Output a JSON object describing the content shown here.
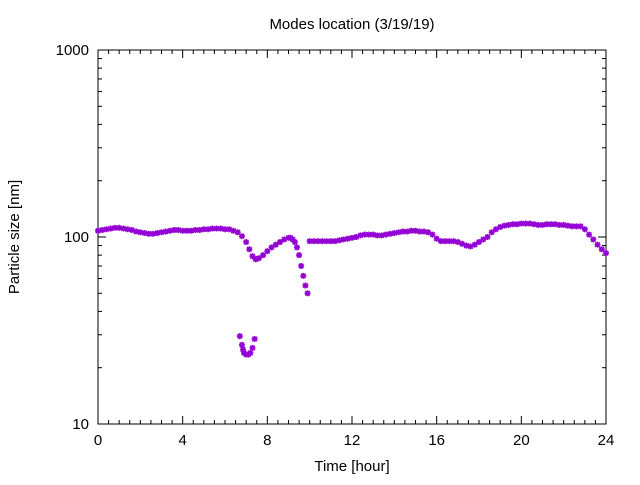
{
  "chart_data": {
    "type": "scatter",
    "title": "Modes location (3/19/19)",
    "xlabel": "Time [hour]",
    "ylabel": "Particle size [nm]",
    "xlim": [
      0,
      24
    ],
    "ylim": [
      10,
      1000
    ],
    "yscale": "log",
    "grid": false,
    "x_ticks": [
      0,
      4,
      8,
      12,
      16,
      20,
      24
    ],
    "x_tick_labels": [
      "0",
      "4",
      "8",
      "12",
      "16",
      "20",
      "24"
    ],
    "y_ticks": [
      10,
      100,
      1000
    ],
    "y_tick_labels": [
      "10",
      "100",
      "1000"
    ],
    "marker_color": "#9400d3",
    "series": [
      {
        "points": [
          [
            0.0,
            108
          ],
          [
            0.2,
            109
          ],
          [
            0.4,
            110
          ],
          [
            0.6,
            111
          ],
          [
            0.8,
            112
          ],
          [
            1.0,
            112
          ],
          [
            1.2,
            111
          ],
          [
            1.4,
            110
          ],
          [
            1.6,
            109
          ],
          [
            1.8,
            107
          ],
          [
            2.0,
            106
          ],
          [
            2.2,
            105
          ],
          [
            2.4,
            104
          ],
          [
            2.6,
            104
          ],
          [
            2.8,
            105
          ],
          [
            3.0,
            106
          ],
          [
            3.2,
            107
          ],
          [
            3.4,
            108
          ],
          [
            3.6,
            109
          ],
          [
            3.8,
            109
          ],
          [
            4.0,
            108
          ],
          [
            4.2,
            108
          ],
          [
            4.4,
            108
          ],
          [
            4.6,
            109
          ],
          [
            4.8,
            109
          ],
          [
            5.0,
            110
          ],
          [
            5.2,
            110
          ],
          [
            5.4,
            111
          ],
          [
            5.6,
            111
          ],
          [
            5.8,
            111
          ],
          [
            6.0,
            110
          ],
          [
            6.2,
            110
          ],
          [
            6.4,
            108
          ],
          [
            6.6,
            106
          ],
          [
            6.8,
            101
          ],
          [
            7.0,
            94
          ],
          [
            7.15,
            86
          ],
          [
            7.3,
            79
          ],
          [
            7.45,
            76
          ],
          [
            7.6,
            77
          ],
          [
            7.8,
            80
          ],
          [
            8.0,
            84
          ],
          [
            8.2,
            88
          ],
          [
            8.4,
            91
          ],
          [
            8.6,
            94
          ],
          [
            8.8,
            97
          ],
          [
            9.0,
            99
          ],
          [
            9.1,
            99
          ],
          [
            9.2,
            97
          ],
          [
            9.3,
            94
          ],
          [
            9.4,
            88
          ],
          [
            9.5,
            80
          ],
          [
            9.6,
            70
          ],
          [
            9.7,
            62
          ],
          [
            9.8,
            55
          ],
          [
            9.9,
            50
          ],
          [
            6.7,
            29.5
          ],
          [
            6.8,
            26.5
          ],
          [
            6.85,
            25
          ],
          [
            6.9,
            24
          ],
          [
            7.0,
            23.5
          ],
          [
            7.1,
            23.5
          ],
          [
            7.2,
            24
          ],
          [
            7.3,
            25.5
          ],
          [
            7.4,
            28.5
          ],
          [
            10.0,
            95
          ],
          [
            10.2,
            95
          ],
          [
            10.4,
            95
          ],
          [
            10.6,
            95
          ],
          [
            10.8,
            95
          ],
          [
            11.0,
            95
          ],
          [
            11.2,
            95
          ],
          [
            11.4,
            96
          ],
          [
            11.6,
            97
          ],
          [
            11.8,
            98
          ],
          [
            12.0,
            99
          ],
          [
            12.2,
            100
          ],
          [
            12.4,
            102
          ],
          [
            12.6,
            103
          ],
          [
            12.8,
            103
          ],
          [
            13.0,
            103
          ],
          [
            13.2,
            102
          ],
          [
            13.4,
            102
          ],
          [
            13.6,
            103
          ],
          [
            13.8,
            104
          ],
          [
            14.0,
            105
          ],
          [
            14.2,
            106
          ],
          [
            14.4,
            107
          ],
          [
            14.6,
            107
          ],
          [
            14.8,
            108
          ],
          [
            15.0,
            108
          ],
          [
            15.2,
            107
          ],
          [
            15.4,
            107
          ],
          [
            15.6,
            106
          ],
          [
            15.8,
            103
          ],
          [
            16.0,
            98
          ],
          [
            16.2,
            95
          ],
          [
            16.4,
            95
          ],
          [
            16.6,
            95
          ],
          [
            16.8,
            95
          ],
          [
            17.0,
            94
          ],
          [
            17.2,
            92
          ],
          [
            17.4,
            90
          ],
          [
            17.6,
            89
          ],
          [
            17.8,
            91
          ],
          [
            18.0,
            94
          ],
          [
            18.2,
            97
          ],
          [
            18.4,
            100
          ],
          [
            18.6,
            106
          ],
          [
            18.8,
            110
          ],
          [
            19.0,
            113
          ],
          [
            19.2,
            115
          ],
          [
            19.4,
            116
          ],
          [
            19.6,
            117
          ],
          [
            19.8,
            117
          ],
          [
            20.0,
            118
          ],
          [
            20.2,
            118
          ],
          [
            20.4,
            118
          ],
          [
            20.6,
            117
          ],
          [
            20.8,
            116
          ],
          [
            21.0,
            116
          ],
          [
            21.2,
            117
          ],
          [
            21.4,
            117
          ],
          [
            21.6,
            117
          ],
          [
            21.8,
            116
          ],
          [
            22.0,
            116
          ],
          [
            22.2,
            115
          ],
          [
            22.4,
            114
          ],
          [
            22.6,
            114
          ],
          [
            22.8,
            114
          ],
          [
            23.0,
            110
          ],
          [
            23.2,
            103
          ],
          [
            23.4,
            97
          ],
          [
            23.6,
            91
          ],
          [
            23.8,
            86
          ],
          [
            24.0,
            82
          ]
        ]
      }
    ]
  }
}
